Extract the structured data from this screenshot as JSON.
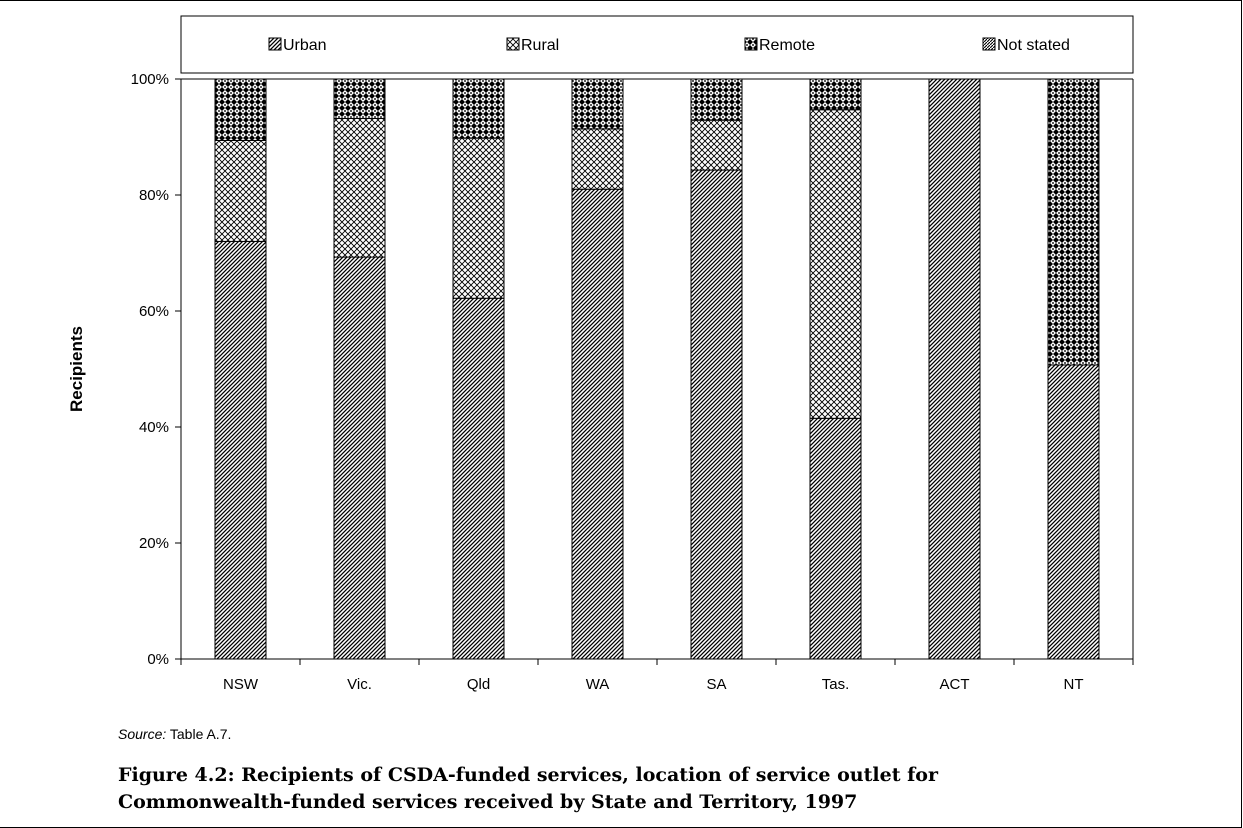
{
  "chart_data": {
    "type": "bar",
    "stacked": true,
    "percent": true,
    "categories": [
      "NSW",
      "Vic.",
      "Qld",
      "WA",
      "SA",
      "Tas.",
      "ACT",
      "NT"
    ],
    "series": [
      {
        "name": "Urban",
        "pattern": "diagonal-hatch",
        "values": [
          72,
          69.3,
          62.2,
          81,
          84.3,
          41.5,
          100,
          50.7
        ]
      },
      {
        "name": "Rural",
        "pattern": "crosshatch",
        "values": [
          17.4,
          23.9,
          27.6,
          10.4,
          8.6,
          53.2,
          0,
          0
        ]
      },
      {
        "name": "Remote",
        "pattern": "dense-crosshatch",
        "values": [
          10.6,
          6.8,
          10.2,
          8.6,
          7.1,
          5.3,
          0,
          49.3
        ]
      },
      {
        "name": "Not stated",
        "pattern": "dense-hatch",
        "values": [
          0,
          0,
          0,
          0,
          0,
          0,
          0,
          0
        ]
      }
    ],
    "ylabel": "Recipients",
    "ylim": [
      0,
      100
    ],
    "yticks": [
      "0%",
      "20%",
      "40%",
      "60%",
      "80%",
      "100%"
    ],
    "legend_position": "top",
    "grid": false
  },
  "source": {
    "label": "Source:",
    "text": " Table A.7."
  },
  "caption": {
    "line1": "Figure 4.2: Recipients of CSDA-funded services, location of service outlet for",
    "line2": "Commonwealth-funded services received by State and Territory, 1997"
  }
}
